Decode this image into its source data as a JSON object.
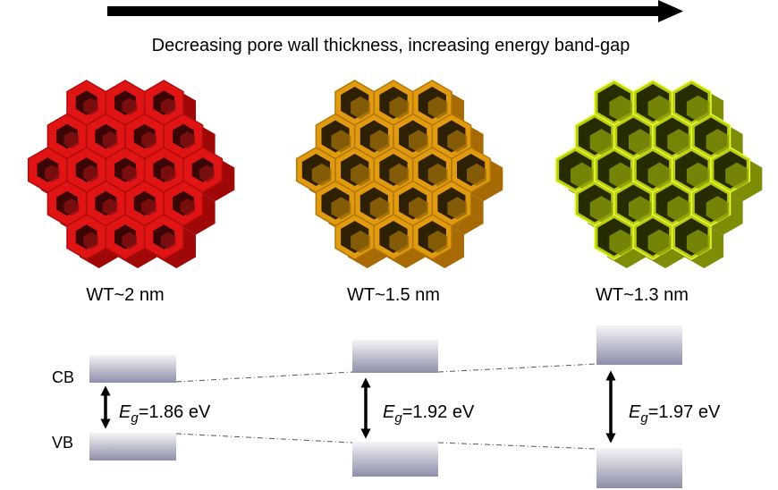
{
  "header": {
    "title": "Decreasing pore wall thickness, increasing energy band-gap"
  },
  "band_labels": {
    "cb": "CB",
    "vb": "VB"
  },
  "structures": [
    {
      "label": "WT~2 nm",
      "band_gap": {
        "symbol": "E",
        "subscript": "g",
        "value": "=1.86 eV"
      }
    },
    {
      "label": "WT~1.5 nm",
      "band_gap": {
        "symbol": "E",
        "subscript": "g",
        "value": "=1.92 eV"
      }
    },
    {
      "label": "WT~1.3 nm",
      "band_gap": {
        "symbol": "E",
        "subscript": "g",
        "value": "=1.97 eV"
      }
    }
  ]
}
